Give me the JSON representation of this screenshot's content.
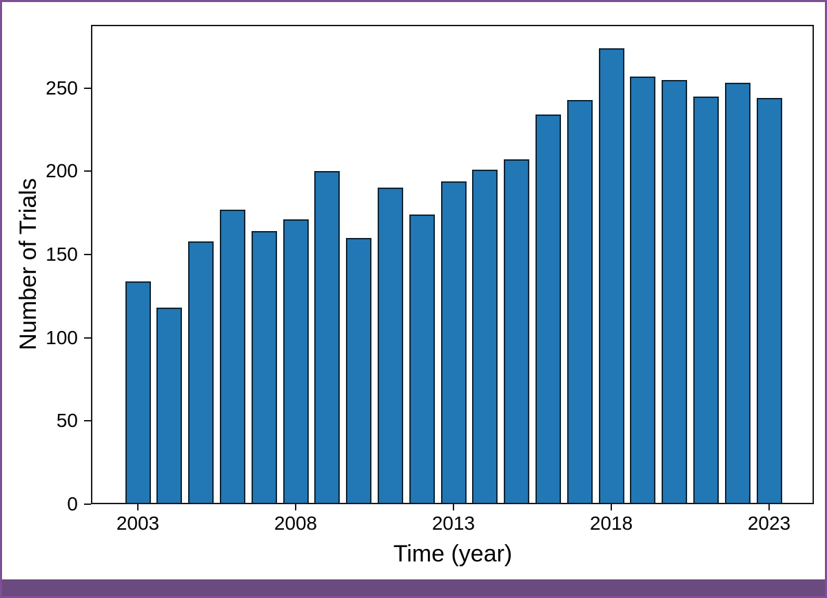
{
  "chart_data": {
    "type": "bar",
    "title": "",
    "xlabel": "Time (year)",
    "ylabel": "Number of Trials",
    "categories": [
      2003,
      2004,
      2005,
      2006,
      2007,
      2008,
      2009,
      2010,
      2011,
      2012,
      2013,
      2014,
      2015,
      2016,
      2017,
      2018,
      2019,
      2020,
      2021,
      2022,
      2023
    ],
    "values": [
      134,
      118,
      158,
      177,
      164,
      171,
      200,
      160,
      190,
      174,
      194,
      201,
      207,
      234,
      243,
      274,
      257,
      255,
      245,
      253,
      244
    ],
    "xtick_labels": [
      "2003",
      "2008",
      "2013",
      "2018",
      "2023"
    ],
    "ytick_values": [
      0,
      50,
      100,
      150,
      200,
      250
    ],
    "ylim": [
      0,
      288
    ],
    "grid": false,
    "legend_position": "none",
    "colors": {
      "bar_fill": "#2277b5",
      "bar_edge": "#0e2433",
      "axis": "#1a1a1a",
      "page_border": "#7d4f97",
      "bottom_band": "#6a4a7f"
    }
  }
}
